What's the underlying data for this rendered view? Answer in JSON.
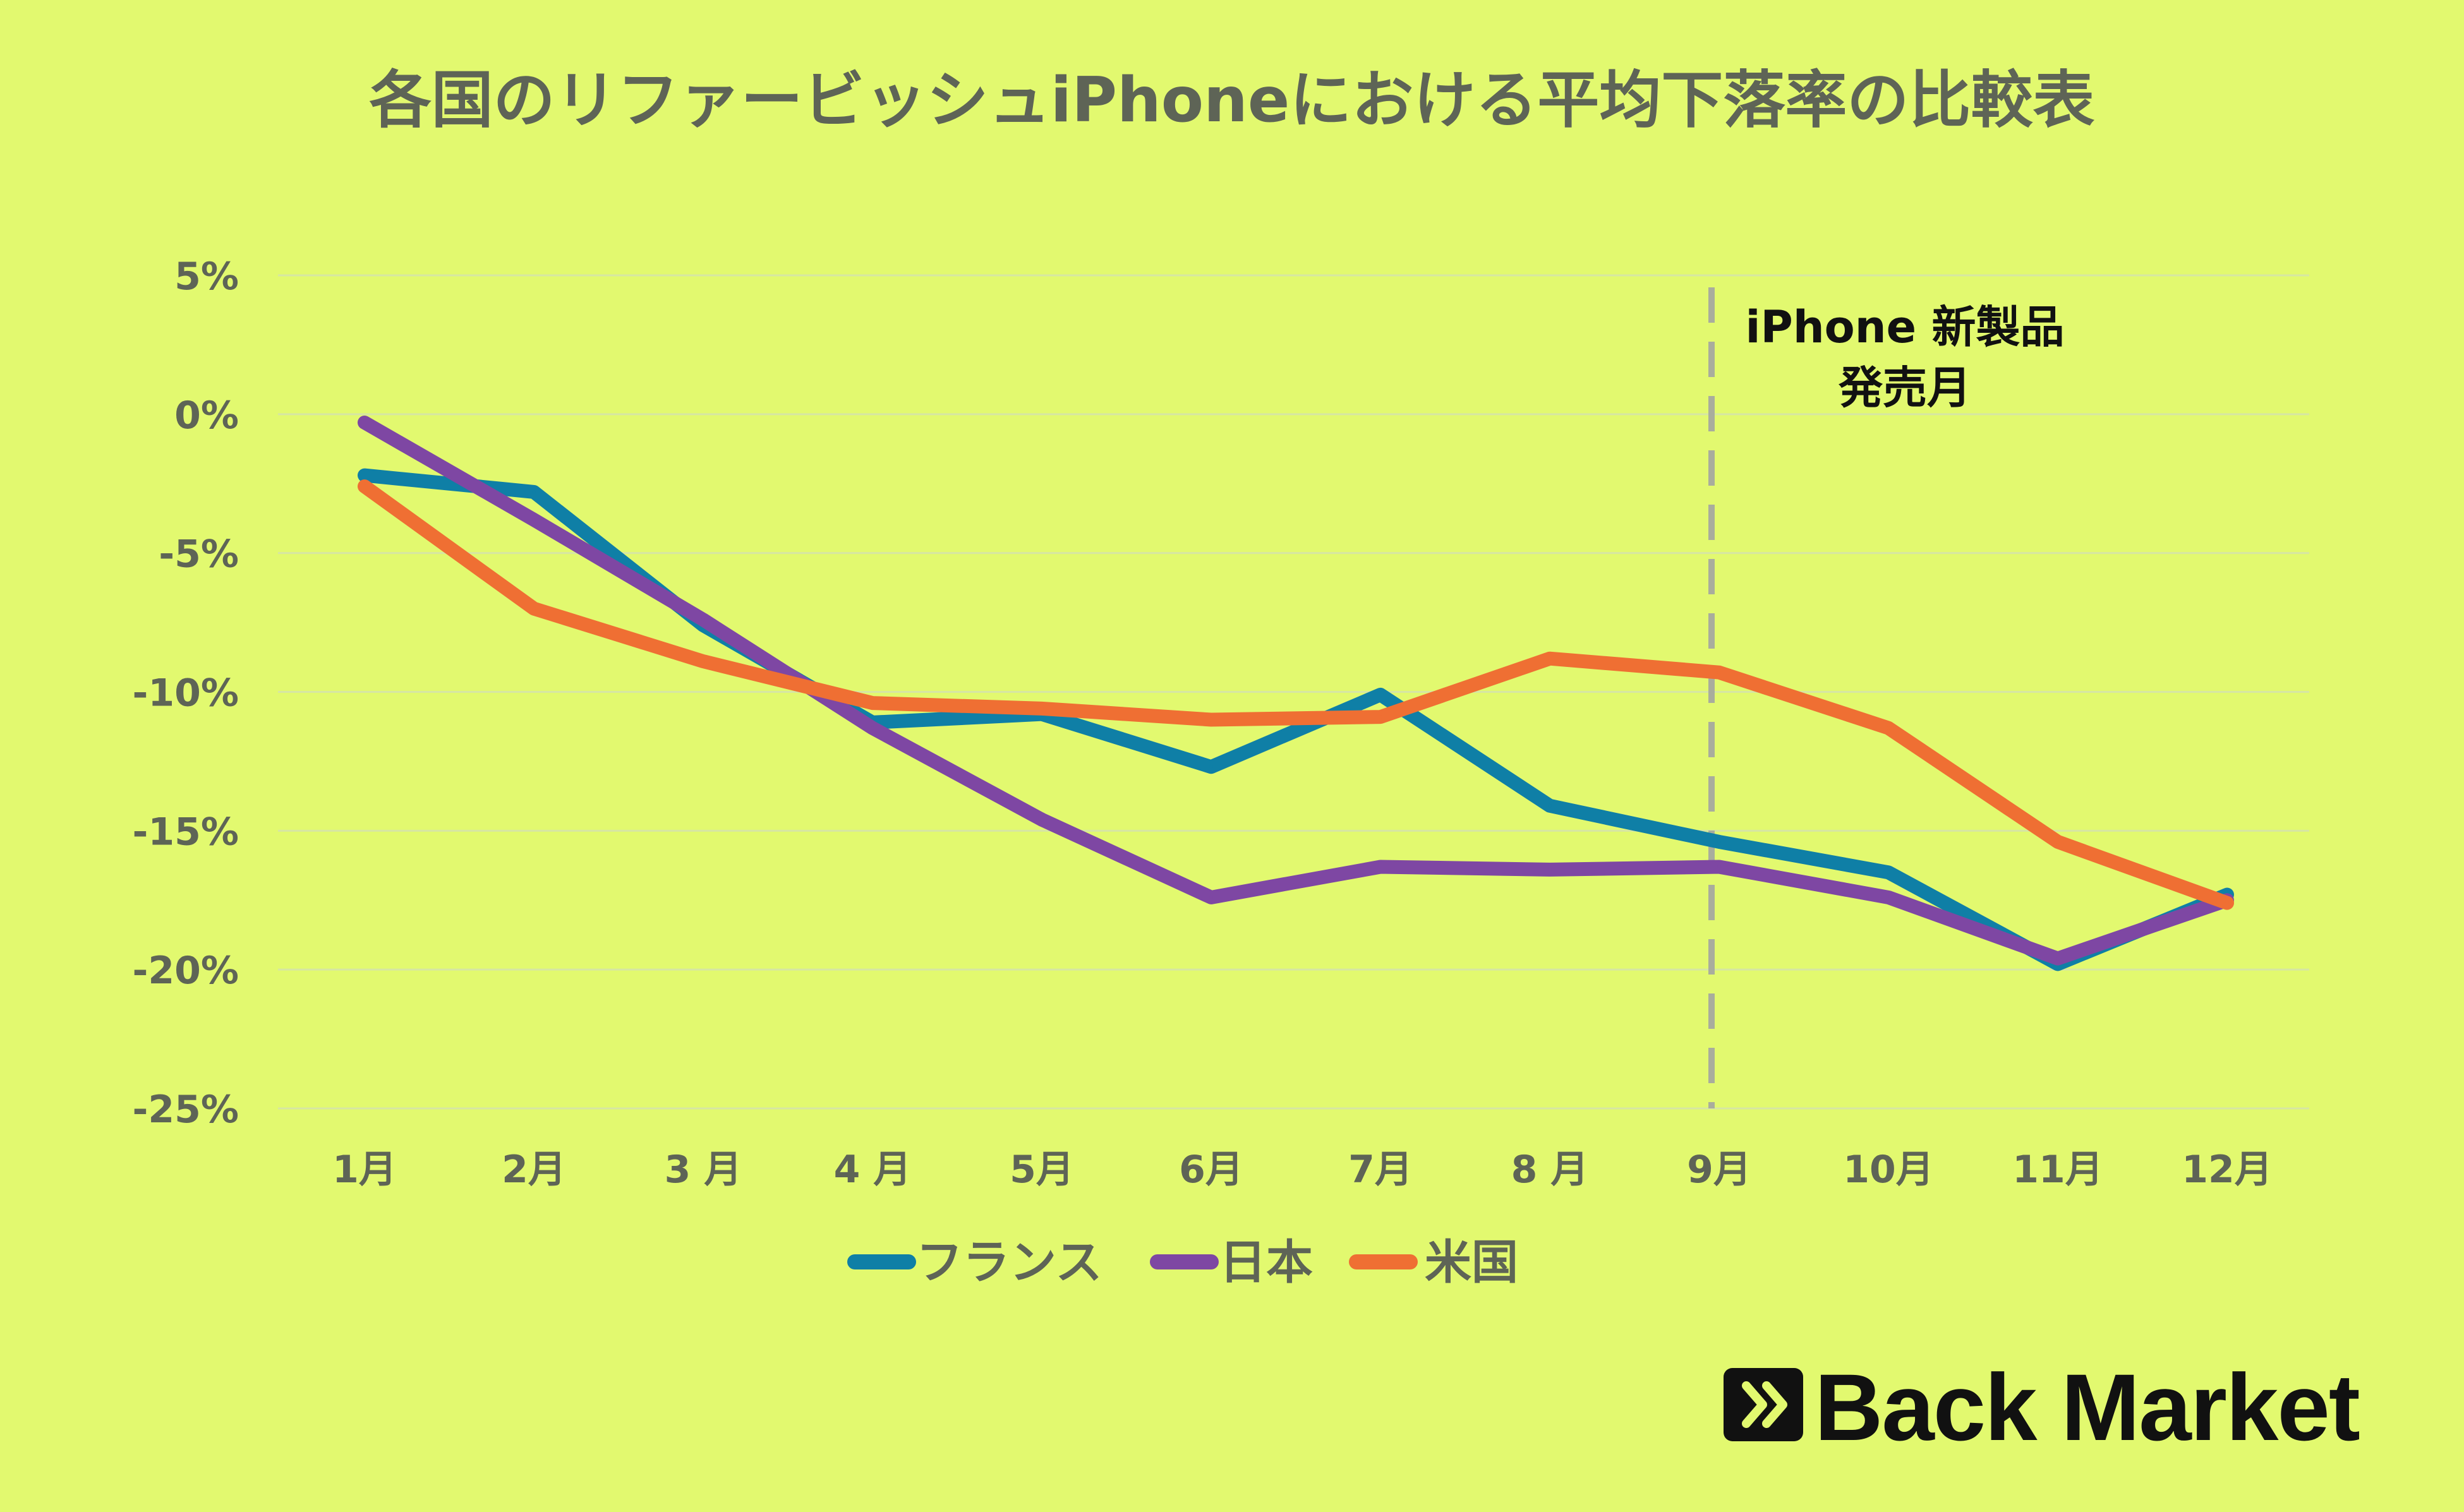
{
  "chart_data": {
    "type": "line",
    "title": "各国のリファービッシュiPhoneにおける平均下落率の比較表",
    "categories": [
      "1月",
      "2月",
      "3 月",
      "4 月",
      "5月",
      "6月",
      "7月",
      "8  月",
      "9月",
      "10月",
      "11月",
      "12月"
    ],
    "y_ticks": [
      "5%",
      "0%",
      "-5%",
      "-10%",
      "-15%",
      "-20%",
      "-25%"
    ],
    "ylim": [
      -25,
      5
    ],
    "grid": true,
    "legend_position": "bottom",
    "series": [
      {
        "name": "フランス",
        "color": "#0f7fa6",
        "values": [
          -2.2,
          -2.8,
          -7.6,
          -11.1,
          -10.8,
          -12.7,
          -10.1,
          -14.1,
          -15.4,
          -16.5,
          -19.8,
          -17.3
        ]
      },
      {
        "name": "日本",
        "color": "#7e47a3",
        "values": [
          -0.3,
          -3.8,
          -7.4,
          -11.3,
          -14.6,
          -17.4,
          -16.3,
          -16.4,
          -16.3,
          -17.4,
          -19.6,
          -17.5
        ]
      },
      {
        "name": "米国",
        "color": "#ef6f33",
        "values": [
          -2.6,
          -7.0,
          -8.9,
          -10.4,
          -10.6,
          -11.0,
          -10.9,
          -8.8,
          -9.3,
          -11.3,
          -15.4,
          -17.6
        ]
      }
    ],
    "annotation": {
      "line1": "iPhone 新製品",
      "line2": "発売月",
      "category_index": 8
    }
  },
  "logo": {
    "text": "Back Market"
  },
  "colors": {
    "background": "#e2f96f",
    "grid": "#d6e6a3",
    "dashed_line": "#a9ad9d"
  }
}
